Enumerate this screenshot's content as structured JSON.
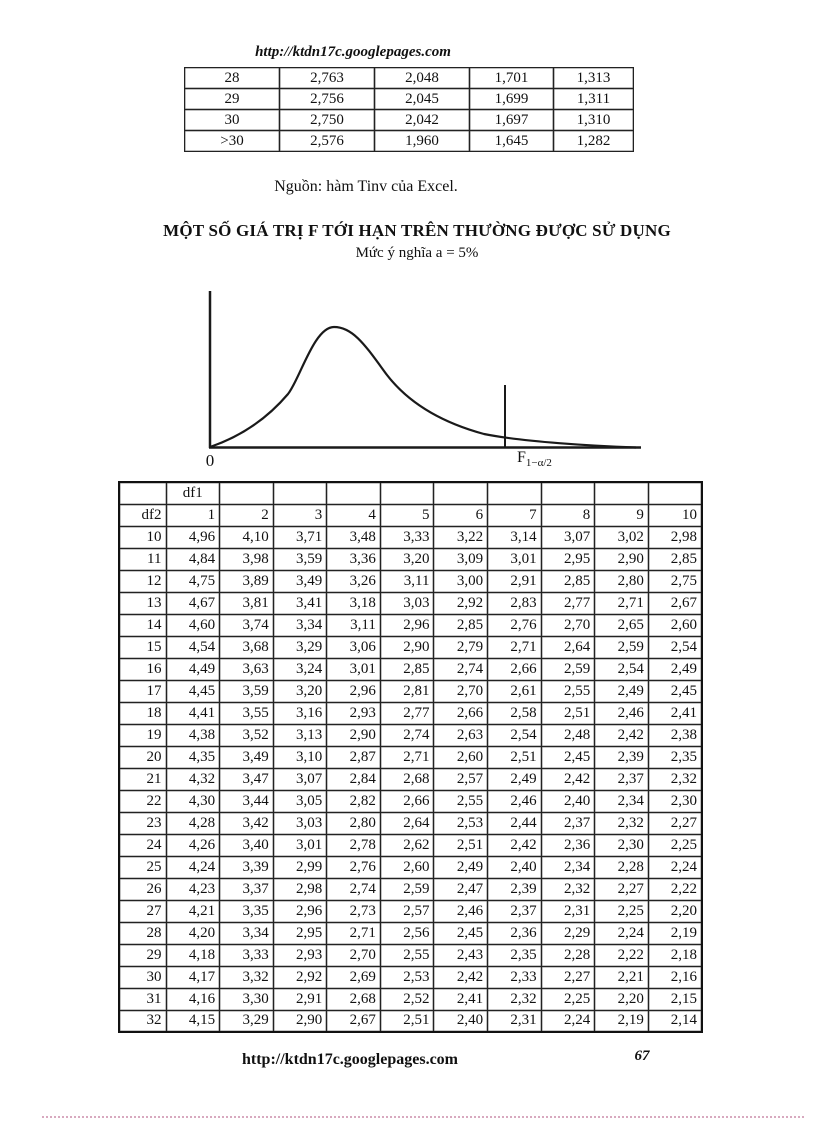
{
  "page": {
    "header_url": "http://ktdn17c.googlepages.com",
    "source_note": "Nguồn: hàm Tinv của Excel.",
    "title": "MỘT SỐ GIÁ TRỊ F TỚI HẠN TRÊN THƯỜNG ĐƯỢC SỬ DỤNG",
    "subtitle": "Mức ý nghĩa a = 5%",
    "footer_url": "http://ktdn17c.googlepages.com",
    "page_number": "67"
  },
  "t_table": {
    "rows": [
      [
        "28",
        "2,763",
        "2,048",
        "1,701",
        "1,313"
      ],
      [
        "29",
        "2,756",
        "2,045",
        "1,699",
        "1,311"
      ],
      [
        "30",
        "2,750",
        "2,042",
        "1,697",
        "1,310"
      ],
      [
        ">30",
        "2,576",
        "1,960",
        "1,645",
        "1,282"
      ]
    ]
  },
  "figure": {
    "origin_label": "0",
    "critical_value_label": {
      "base": "F",
      "subscript": "1−α/2"
    },
    "curve_color": "#1a1a1a"
  },
  "f_table": {
    "corner_label": "df1",
    "row_header_label": "df2",
    "col_headers": [
      "1",
      "2",
      "3",
      "4",
      "5",
      "6",
      "7",
      "8",
      "9",
      "10"
    ],
    "rows": [
      [
        "10",
        "4,96",
        "4,10",
        "3,71",
        "3,48",
        "3,33",
        "3,22",
        "3,14",
        "3,07",
        "3,02",
        "2,98"
      ],
      [
        "11",
        "4,84",
        "3,98",
        "3,59",
        "3,36",
        "3,20",
        "3,09",
        "3,01",
        "2,95",
        "2,90",
        "2,85"
      ],
      [
        "12",
        "4,75",
        "3,89",
        "3,49",
        "3,26",
        "3,11",
        "3,00",
        "2,91",
        "2,85",
        "2,80",
        "2,75"
      ],
      [
        "13",
        "4,67",
        "3,81",
        "3,41",
        "3,18",
        "3,03",
        "2,92",
        "2,83",
        "2,77",
        "2,71",
        "2,67"
      ],
      [
        "14",
        "4,60",
        "3,74",
        "3,34",
        "3,11",
        "2,96",
        "2,85",
        "2,76",
        "2,70",
        "2,65",
        "2,60"
      ],
      [
        "15",
        "4,54",
        "3,68",
        "3,29",
        "3,06",
        "2,90",
        "2,79",
        "2,71",
        "2,64",
        "2,59",
        "2,54"
      ],
      [
        "16",
        "4,49",
        "3,63",
        "3,24",
        "3,01",
        "2,85",
        "2,74",
        "2,66",
        "2,59",
        "2,54",
        "2,49"
      ],
      [
        "17",
        "4,45",
        "3,59",
        "3,20",
        "2,96",
        "2,81",
        "2,70",
        "2,61",
        "2,55",
        "2,49",
        "2,45"
      ],
      [
        "18",
        "4,41",
        "3,55",
        "3,16",
        "2,93",
        "2,77",
        "2,66",
        "2,58",
        "2,51",
        "2,46",
        "2,41"
      ],
      [
        "19",
        "4,38",
        "3,52",
        "3,13",
        "2,90",
        "2,74",
        "2,63",
        "2,54",
        "2,48",
        "2,42",
        "2,38"
      ],
      [
        "20",
        "4,35",
        "3,49",
        "3,10",
        "2,87",
        "2,71",
        "2,60",
        "2,51",
        "2,45",
        "2,39",
        "2,35"
      ],
      [
        "21",
        "4,32",
        "3,47",
        "3,07",
        "2,84",
        "2,68",
        "2,57",
        "2,49",
        "2,42",
        "2,37",
        "2,32"
      ],
      [
        "22",
        "4,30",
        "3,44",
        "3,05",
        "2,82",
        "2,66",
        "2,55",
        "2,46",
        "2,40",
        "2,34",
        "2,30"
      ],
      [
        "23",
        "4,28",
        "3,42",
        "3,03",
        "2,80",
        "2,64",
        "2,53",
        "2,44",
        "2,37",
        "2,32",
        "2,27"
      ],
      [
        "24",
        "4,26",
        "3,40",
        "3,01",
        "2,78",
        "2,62",
        "2,51",
        "2,42",
        "2,36",
        "2,30",
        "2,25"
      ],
      [
        "25",
        "4,24",
        "3,39",
        "2,99",
        "2,76",
        "2,60",
        "2,49",
        "2,40",
        "2,34",
        "2,28",
        "2,24"
      ],
      [
        "26",
        "4,23",
        "3,37",
        "2,98",
        "2,74",
        "2,59",
        "2,47",
        "2,39",
        "2,32",
        "2,27",
        "2,22"
      ],
      [
        "27",
        "4,21",
        "3,35",
        "2,96",
        "2,73",
        "2,57",
        "2,46",
        "2,37",
        "2,31",
        "2,25",
        "2,20"
      ],
      [
        "28",
        "4,20",
        "3,34",
        "2,95",
        "2,71",
        "2,56",
        "2,45",
        "2,36",
        "2,29",
        "2,24",
        "2,19"
      ],
      [
        "29",
        "4,18",
        "3,33",
        "2,93",
        "2,70",
        "2,55",
        "2,43",
        "2,35",
        "2,28",
        "2,22",
        "2,18"
      ],
      [
        "30",
        "4,17",
        "3,32",
        "2,92",
        "2,69",
        "2,53",
        "2,42",
        "2,33",
        "2,27",
        "2,21",
        "2,16"
      ],
      [
        "31",
        "4,16",
        "3,30",
        "2,91",
        "2,68",
        "2,52",
        "2,41",
        "2,32",
        "2,25",
        "2,20",
        "2,15"
      ],
      [
        "32",
        "4,15",
        "3,29",
        "2,90",
        "2,67",
        "2,51",
        "2,40",
        "2,31",
        "2,24",
        "2,19",
        "2,14"
      ]
    ]
  }
}
